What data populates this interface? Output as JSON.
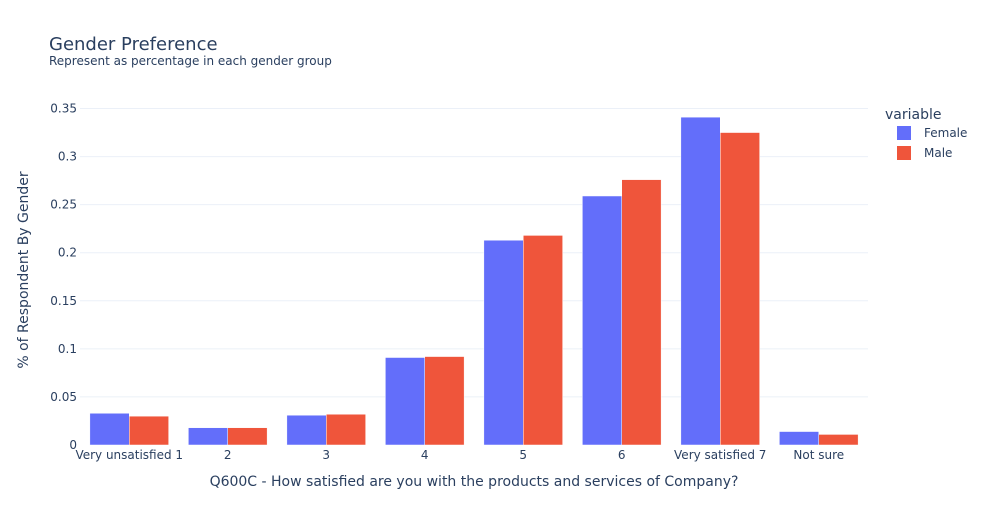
{
  "chart_data": {
    "type": "bar",
    "title": "Gender Preference",
    "subtitle": "Represent as percentage in each gender group",
    "xlabel": "Q600C - How satisfied are you with the products and services of Company?",
    "ylabel": "% of Respondent By Gender",
    "ylim": [
      0,
      0.35
    ],
    "yticks": [
      0,
      0.05,
      0.1,
      0.15,
      0.2,
      0.25,
      0.3,
      0.35
    ],
    "ytick_labels": [
      "0",
      "0.05",
      "0.1",
      "0.15",
      "0.2",
      "0.25",
      "0.3",
      "0.35"
    ],
    "grid": true,
    "legend_title": "variable",
    "legend_position": "top-right",
    "categories": [
      "Very unsatisfied 1",
      "2",
      "3",
      "4",
      "5",
      "6",
      "Very satisfied 7",
      "Not sure"
    ],
    "series": [
      {
        "name": "Female",
        "color": "#636efa",
        "values": [
          0.033,
          0.018,
          0.031,
          0.091,
          0.213,
          0.259,
          0.341,
          0.014
        ]
      },
      {
        "name": "Male",
        "color": "#ef553b",
        "values": [
          0.03,
          0.018,
          0.032,
          0.092,
          0.218,
          0.276,
          0.325,
          0.011
        ]
      }
    ]
  }
}
